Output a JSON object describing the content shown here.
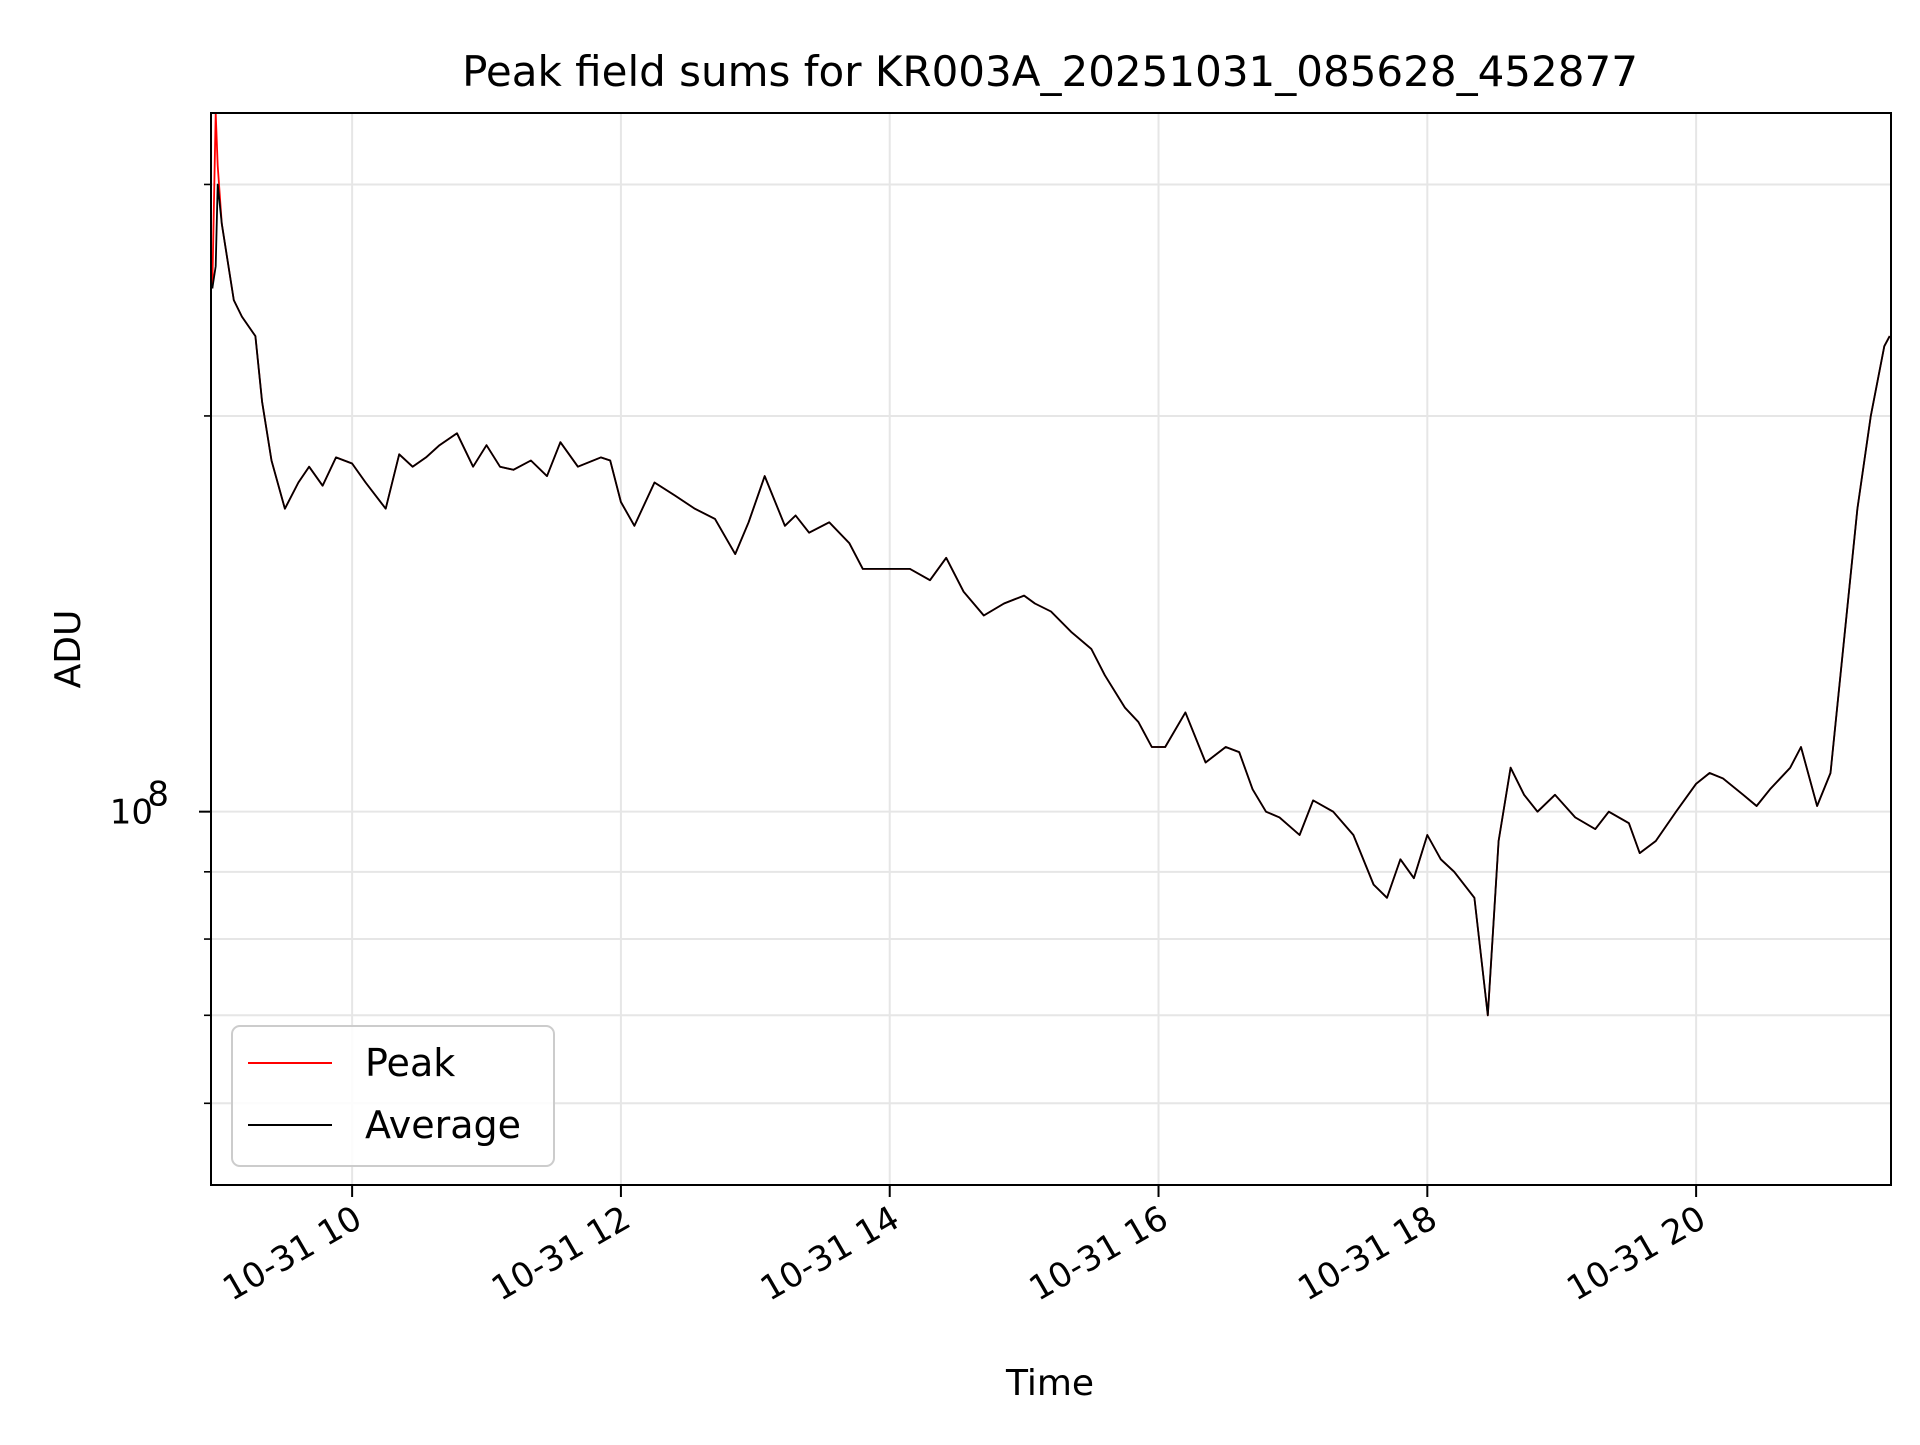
{
  "chart_data": {
    "type": "line",
    "title": "Peak field sums for KR003A_20251031_085628_452877",
    "xlabel": "Time",
    "ylabel": "ADU",
    "yscale": "log",
    "ylim": [
      52000000,
      340000000
    ],
    "xlim_hours": [
      8.95,
      21.45
    ],
    "grid": true,
    "legend_position": "lower-left",
    "x_ticks": [
      {
        "label": "10-31 10",
        "hour": 10
      },
      {
        "label": "10-31 12",
        "hour": 12
      },
      {
        "label": "10-31 14",
        "hour": 14
      },
      {
        "label": "10-31 16",
        "hour": 16
      },
      {
        "label": "10-31 18",
        "hour": 18
      },
      {
        "label": "10-31 20",
        "hour": 20
      }
    ],
    "y_major_ticks": [
      {
        "value": 100000000,
        "base": "10",
        "exp": "8"
      }
    ],
    "y_minor_ticks": [
      60000000,
      70000000,
      80000000,
      90000000,
      200000000,
      300000000
    ],
    "series": [
      {
        "name": "Peak",
        "color": "#ff0000",
        "points": [
          [
            8.96,
            250000000
          ],
          [
            8.985,
            340000000
          ],
          [
            9.0,
            310000000
          ],
          [
            9.03,
            280000000
          ],
          [
            9.12,
            245000000
          ],
          [
            9.18,
            238000000
          ],
          [
            9.28,
            230000000
          ],
          [
            9.33,
            205000000
          ],
          [
            9.4,
            185000000
          ],
          [
            9.5,
            170000000
          ],
          [
            9.6,
            178000000
          ],
          [
            9.68,
            183000000
          ],
          [
            9.78,
            177000000
          ],
          [
            9.88,
            186000000
          ],
          [
            10.0,
            184000000
          ],
          [
            10.1,
            178000000
          ],
          [
            10.25,
            170000000
          ],
          [
            10.35,
            187000000
          ],
          [
            10.45,
            183000000
          ],
          [
            10.55,
            186000000
          ],
          [
            10.65,
            190000000
          ],
          [
            10.78,
            194000000
          ],
          [
            10.9,
            183000000
          ],
          [
            11.0,
            190000000
          ],
          [
            11.1,
            183000000
          ],
          [
            11.2,
            182000000
          ],
          [
            11.33,
            185000000
          ],
          [
            11.45,
            180000000
          ],
          [
            11.55,
            191000000
          ],
          [
            11.68,
            183000000
          ],
          [
            11.85,
            186000000
          ],
          [
            11.92,
            185000000
          ],
          [
            12.0,
            172000000
          ],
          [
            12.1,
            165000000
          ],
          [
            12.25,
            178000000
          ],
          [
            12.4,
            174000000
          ],
          [
            12.55,
            170000000
          ],
          [
            12.7,
            167000000
          ],
          [
            12.85,
            157000000
          ],
          [
            12.95,
            166000000
          ],
          [
            13.07,
            180000000
          ],
          [
            13.22,
            165000000
          ],
          [
            13.3,
            168000000
          ],
          [
            13.4,
            163000000
          ],
          [
            13.55,
            166000000
          ],
          [
            13.7,
            160000000
          ],
          [
            13.8,
            153000000
          ],
          [
            14.0,
            153000000
          ],
          [
            14.15,
            153000000
          ],
          [
            14.3,
            150000000
          ],
          [
            14.42,
            156000000
          ],
          [
            14.55,
            147000000
          ],
          [
            14.7,
            141000000
          ],
          [
            14.85,
            144000000
          ],
          [
            15.0,
            146000000
          ],
          [
            15.08,
            144000000
          ],
          [
            15.2,
            142000000
          ],
          [
            15.35,
            137000000
          ],
          [
            15.5,
            133000000
          ],
          [
            15.6,
            127000000
          ],
          [
            15.75,
            120000000
          ],
          [
            15.85,
            117000000
          ],
          [
            15.95,
            112000000
          ],
          [
            16.05,
            112000000
          ],
          [
            16.2,
            119000000
          ],
          [
            16.35,
            109000000
          ],
          [
            16.5,
            112000000
          ],
          [
            16.6,
            111000000
          ],
          [
            16.7,
            104000000
          ],
          [
            16.8,
            100000000
          ],
          [
            16.9,
            99000000
          ],
          [
            17.05,
            96000000
          ],
          [
            17.15,
            102000000
          ],
          [
            17.3,
            100000000
          ],
          [
            17.45,
            96000000
          ],
          [
            17.6,
            88000000
          ],
          [
            17.7,
            86000000
          ],
          [
            17.8,
            92000000
          ],
          [
            17.9,
            89000000
          ],
          [
            18.0,
            96000000
          ],
          [
            18.1,
            92000000
          ],
          [
            18.2,
            90000000
          ],
          [
            18.35,
            86000000
          ],
          [
            18.45,
            70000000
          ],
          [
            18.53,
            95000000
          ],
          [
            18.62,
            108000000
          ],
          [
            18.72,
            103000000
          ],
          [
            18.82,
            100000000
          ],
          [
            18.95,
            103000000
          ],
          [
            19.1,
            99000000
          ],
          [
            19.25,
            97000000
          ],
          [
            19.35,
            100000000
          ],
          [
            19.5,
            98000000
          ],
          [
            19.58,
            93000000
          ],
          [
            19.7,
            95000000
          ],
          [
            19.85,
            100000000
          ],
          [
            20.0,
            105000000
          ],
          [
            20.1,
            107000000
          ],
          [
            20.2,
            106000000
          ],
          [
            20.35,
            103000000
          ],
          [
            20.45,
            101000000
          ],
          [
            20.55,
            104000000
          ],
          [
            20.7,
            108000000
          ],
          [
            20.78,
            112000000
          ],
          [
            20.9,
            101000000
          ],
          [
            21.0,
            107000000
          ],
          [
            21.1,
            135000000
          ],
          [
            21.2,
            170000000
          ],
          [
            21.3,
            200000000
          ],
          [
            21.4,
            226000000
          ],
          [
            21.44,
            230000000
          ]
        ]
      },
      {
        "name": "Average",
        "color": "#000000",
        "points": [
          [
            8.96,
            250000000
          ],
          [
            8.985,
            260000000
          ],
          [
            9.0,
            300000000
          ],
          [
            9.03,
            280000000
          ],
          [
            9.12,
            245000000
          ],
          [
            9.18,
            238000000
          ],
          [
            9.28,
            230000000
          ],
          [
            9.33,
            205000000
          ],
          [
            9.4,
            185000000
          ],
          [
            9.5,
            170000000
          ],
          [
            9.6,
            178000000
          ],
          [
            9.68,
            183000000
          ],
          [
            9.78,
            177000000
          ],
          [
            9.88,
            186000000
          ],
          [
            10.0,
            184000000
          ],
          [
            10.1,
            178000000
          ],
          [
            10.25,
            170000000
          ],
          [
            10.35,
            187000000
          ],
          [
            10.45,
            183000000
          ],
          [
            10.55,
            186000000
          ],
          [
            10.65,
            190000000
          ],
          [
            10.78,
            194000000
          ],
          [
            10.9,
            183000000
          ],
          [
            11.0,
            190000000
          ],
          [
            11.1,
            183000000
          ],
          [
            11.2,
            182000000
          ],
          [
            11.33,
            185000000
          ],
          [
            11.45,
            180000000
          ],
          [
            11.55,
            191000000
          ],
          [
            11.68,
            183000000
          ],
          [
            11.85,
            186000000
          ],
          [
            11.92,
            185000000
          ],
          [
            12.0,
            172000000
          ],
          [
            12.1,
            165000000
          ],
          [
            12.25,
            178000000
          ],
          [
            12.4,
            174000000
          ],
          [
            12.55,
            170000000
          ],
          [
            12.7,
            167000000
          ],
          [
            12.85,
            157000000
          ],
          [
            12.95,
            166000000
          ],
          [
            13.07,
            180000000
          ],
          [
            13.22,
            165000000
          ],
          [
            13.3,
            168000000
          ],
          [
            13.4,
            163000000
          ],
          [
            13.55,
            166000000
          ],
          [
            13.7,
            160000000
          ],
          [
            13.8,
            153000000
          ],
          [
            14.0,
            153000000
          ],
          [
            14.15,
            153000000
          ],
          [
            14.3,
            150000000
          ],
          [
            14.42,
            156000000
          ],
          [
            14.55,
            147000000
          ],
          [
            14.7,
            141000000
          ],
          [
            14.85,
            144000000
          ],
          [
            15.0,
            146000000
          ],
          [
            15.08,
            144000000
          ],
          [
            15.2,
            142000000
          ],
          [
            15.35,
            137000000
          ],
          [
            15.5,
            133000000
          ],
          [
            15.6,
            127000000
          ],
          [
            15.75,
            120000000
          ],
          [
            15.85,
            117000000
          ],
          [
            15.95,
            112000000
          ],
          [
            16.05,
            112000000
          ],
          [
            16.2,
            119000000
          ],
          [
            16.35,
            109000000
          ],
          [
            16.5,
            112000000
          ],
          [
            16.6,
            111000000
          ],
          [
            16.7,
            104000000
          ],
          [
            16.8,
            100000000
          ],
          [
            16.9,
            99000000
          ],
          [
            17.05,
            96000000
          ],
          [
            17.15,
            102000000
          ],
          [
            17.3,
            100000000
          ],
          [
            17.45,
            96000000
          ],
          [
            17.6,
            88000000
          ],
          [
            17.7,
            86000000
          ],
          [
            17.8,
            92000000
          ],
          [
            17.9,
            89000000
          ],
          [
            18.0,
            96000000
          ],
          [
            18.1,
            92000000
          ],
          [
            18.2,
            90000000
          ],
          [
            18.35,
            86000000
          ],
          [
            18.45,
            70000000
          ],
          [
            18.53,
            95000000
          ],
          [
            18.62,
            108000000
          ],
          [
            18.72,
            103000000
          ],
          [
            18.82,
            100000000
          ],
          [
            18.95,
            103000000
          ],
          [
            19.1,
            99000000
          ],
          [
            19.25,
            97000000
          ],
          [
            19.35,
            100000000
          ],
          [
            19.5,
            98000000
          ],
          [
            19.58,
            93000000
          ],
          [
            19.7,
            95000000
          ],
          [
            19.85,
            100000000
          ],
          [
            20.0,
            105000000
          ],
          [
            20.1,
            107000000
          ],
          [
            20.2,
            106000000
          ],
          [
            20.35,
            103000000
          ],
          [
            20.45,
            101000000
          ],
          [
            20.55,
            104000000
          ],
          [
            20.7,
            108000000
          ],
          [
            20.78,
            112000000
          ],
          [
            20.9,
            101000000
          ],
          [
            21.0,
            107000000
          ],
          [
            21.1,
            135000000
          ],
          [
            21.2,
            170000000
          ],
          [
            21.3,
            200000000
          ],
          [
            21.4,
            226000000
          ],
          [
            21.44,
            230000000
          ]
        ]
      }
    ]
  }
}
